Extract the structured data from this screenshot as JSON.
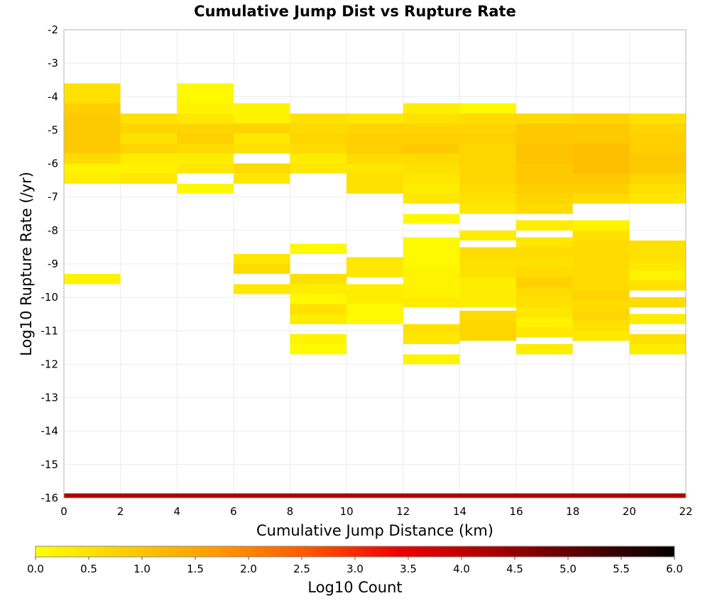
{
  "chart_data": {
    "type": "heatmap",
    "title": "Cumulative Jump Dist vs Rupture Rate",
    "xlabel": "Cumulative Jump Distance (km)",
    "ylabel": "Log10 Rupture Rate (/yr)",
    "xlim": [
      0,
      22
    ],
    "ylim": [
      -16,
      -2
    ],
    "x_ticks": [
      "0",
      "2",
      "4",
      "6",
      "8",
      "10",
      "12",
      "14",
      "16",
      "18",
      "20",
      "22"
    ],
    "y_ticks": [
      "-2",
      "-3",
      "-4",
      "-5",
      "-6",
      "-7",
      "-8",
      "-9",
      "-10",
      "-11",
      "-12",
      "-13",
      "-14",
      "-15",
      "-16"
    ],
    "grid": true,
    "bin_width_x": 2,
    "bin_height_y": 0.3,
    "colorbar": {
      "label": "Log10 Count",
      "range": [
        0,
        6
      ],
      "ticks": [
        "0.0",
        "0.5",
        "1.0",
        "1.5",
        "2.0",
        "2.5",
        "3.0",
        "3.5",
        "4.0",
        "4.5",
        "5.0",
        "5.5",
        "6.0"
      ],
      "colors": [
        "#ffff00",
        "#ffcc00",
        "#ff9900",
        "#ff5500",
        "#ee0000",
        "#aa0000",
        "#550000",
        "#000000"
      ]
    },
    "cells": [
      [
        0,
        -3.6,
        0.5
      ],
      [
        0,
        -3.9,
        0.5
      ],
      [
        0,
        -4.2,
        0.8
      ],
      [
        0,
        -4.5,
        0.9
      ],
      [
        0,
        -4.8,
        0.9
      ],
      [
        0,
        -5.1,
        0.9
      ],
      [
        0,
        -5.4,
        0.9
      ],
      [
        0,
        -5.7,
        0.6
      ],
      [
        0,
        -6.0,
        0.2
      ],
      [
        0,
        -6.3,
        0.3
      ],
      [
        0,
        -9.3,
        0.2
      ],
      [
        2,
        -4.5,
        0.5
      ],
      [
        2,
        -4.8,
        0.7
      ],
      [
        2,
        -5.1,
        0.5
      ],
      [
        2,
        -5.4,
        0.7
      ],
      [
        2,
        -5.7,
        0.3
      ],
      [
        2,
        -6.0,
        0.2
      ],
      [
        2,
        -6.3,
        0.4
      ],
      [
        4,
        -3.6,
        0.1
      ],
      [
        4,
        -3.9,
        0.1
      ],
      [
        4,
        -4.2,
        0.2
      ],
      [
        4,
        -4.5,
        0.4
      ],
      [
        4,
        -4.8,
        0.7
      ],
      [
        4,
        -5.1,
        0.8
      ],
      [
        4,
        -5.4,
        0.6
      ],
      [
        4,
        -5.7,
        0.3
      ],
      [
        4,
        -6.0,
        0.4
      ],
      [
        4,
        -6.6,
        0.1
      ],
      [
        6,
        -4.2,
        0.2
      ],
      [
        6,
        -4.5,
        0.2
      ],
      [
        6,
        -4.8,
        0.7
      ],
      [
        6,
        -5.1,
        0.4
      ],
      [
        6,
        -5.4,
        0.5
      ],
      [
        6,
        -6.0,
        0.6
      ],
      [
        6,
        -6.3,
        0.4
      ],
      [
        6,
        -8.7,
        0.4
      ],
      [
        6,
        -9.0,
        0.6
      ],
      [
        6,
        -9.6,
        0.4
      ],
      [
        8,
        -4.5,
        0.5
      ],
      [
        8,
        -4.8,
        0.6
      ],
      [
        8,
        -5.1,
        0.7
      ],
      [
        8,
        -5.4,
        0.6
      ],
      [
        8,
        -5.7,
        0.3
      ],
      [
        8,
        -6.0,
        0.4
      ],
      [
        8,
        -8.4,
        0.1
      ],
      [
        8,
        -9.3,
        0.5
      ],
      [
        8,
        -9.6,
        0.3
      ],
      [
        8,
        -9.9,
        0.1
      ],
      [
        8,
        -10.2,
        0.5
      ],
      [
        8,
        -10.5,
        0.3
      ],
      [
        8,
        -11.1,
        0.2
      ],
      [
        8,
        -11.4,
        0.1
      ],
      [
        10,
        -4.5,
        0.4
      ],
      [
        10,
        -4.8,
        0.7
      ],
      [
        10,
        -5.1,
        0.8
      ],
      [
        10,
        -5.4,
        0.8
      ],
      [
        10,
        -5.7,
        0.6
      ],
      [
        10,
        -6.0,
        0.4
      ],
      [
        10,
        -6.3,
        0.5
      ],
      [
        10,
        -6.6,
        0.5
      ],
      [
        10,
        -8.8,
        0.4
      ],
      [
        10,
        -9.1,
        0.4
      ],
      [
        10,
        -9.6,
        0.3
      ],
      [
        10,
        -9.9,
        0.3
      ],
      [
        10,
        -10.2,
        0.1
      ],
      [
        10,
        -10.5,
        0.1
      ],
      [
        12,
        -4.2,
        0.3
      ],
      [
        12,
        -4.5,
        0.5
      ],
      [
        12,
        -4.8,
        0.7
      ],
      [
        12,
        -5.1,
        0.8
      ],
      [
        12,
        -5.4,
        0.9
      ],
      [
        12,
        -5.7,
        0.6
      ],
      [
        12,
        -6.0,
        0.5
      ],
      [
        12,
        -6.3,
        0.4
      ],
      [
        12,
        -6.6,
        0.3
      ],
      [
        12,
        -6.9,
        0.4
      ],
      [
        12,
        -7.5,
        0.1
      ],
      [
        12,
        -8.2,
        0.1
      ],
      [
        12,
        -8.5,
        0.1
      ],
      [
        12,
        -8.8,
        0.1
      ],
      [
        12,
        -9.1,
        0.2
      ],
      [
        12,
        -9.4,
        0.2
      ],
      [
        12,
        -9.7,
        0.2
      ],
      [
        12,
        -10.0,
        0.3
      ],
      [
        12,
        -10.8,
        0.5
      ],
      [
        12,
        -11.1,
        0.4
      ],
      [
        12,
        -11.7,
        0.2
      ],
      [
        14,
        -4.2,
        0.1
      ],
      [
        14,
        -4.5,
        0.6
      ],
      [
        14,
        -4.8,
        0.7
      ],
      [
        14,
        -5.1,
        0.8
      ],
      [
        14,
        -5.4,
        0.7
      ],
      [
        14,
        -5.7,
        0.7
      ],
      [
        14,
        -6.0,
        0.7
      ],
      [
        14,
        -6.3,
        0.7
      ],
      [
        14,
        -6.6,
        0.6
      ],
      [
        14,
        -6.9,
        0.5
      ],
      [
        14,
        -7.2,
        0.4
      ],
      [
        14,
        -8.0,
        0.3
      ],
      [
        14,
        -8.5,
        0.6
      ],
      [
        14,
        -8.8,
        0.5
      ],
      [
        14,
        -9.1,
        0.5
      ],
      [
        14,
        -9.4,
        0.3
      ],
      [
        14,
        -9.7,
        0.3
      ],
      [
        14,
        -10.0,
        0.3
      ],
      [
        14,
        -10.4,
        0.6
      ],
      [
        14,
        -10.7,
        0.7
      ],
      [
        14,
        -11.0,
        0.7
      ],
      [
        16,
        -4.5,
        0.6
      ],
      [
        16,
        -4.8,
        0.9
      ],
      [
        16,
        -5.1,
        0.9
      ],
      [
        16,
        -5.4,
        1.0
      ],
      [
        16,
        -5.7,
        1.0
      ],
      [
        16,
        -6.0,
        0.9
      ],
      [
        16,
        -6.3,
        0.9
      ],
      [
        16,
        -6.6,
        0.8
      ],
      [
        16,
        -6.9,
        0.7
      ],
      [
        16,
        -7.2,
        0.6
      ],
      [
        16,
        -7.7,
        0.3
      ],
      [
        16,
        -8.2,
        0.4
      ],
      [
        16,
        -8.5,
        0.6
      ],
      [
        16,
        -8.8,
        0.5
      ],
      [
        16,
        -9.1,
        0.6
      ],
      [
        16,
        -9.4,
        0.8
      ],
      [
        16,
        -9.7,
        0.6
      ],
      [
        16,
        -10.0,
        0.5
      ],
      [
        16,
        -10.3,
        0.4
      ],
      [
        16,
        -10.6,
        0.2
      ],
      [
        16,
        -10.9,
        0.4
      ],
      [
        16,
        -11.4,
        0.3
      ],
      [
        18,
        -4.5,
        0.7
      ],
      [
        18,
        -4.8,
        0.9
      ],
      [
        18,
        -5.1,
        0.9
      ],
      [
        18,
        -5.4,
        1.1
      ],
      [
        18,
        -5.7,
        1.1
      ],
      [
        18,
        -6.0,
        1.1
      ],
      [
        18,
        -6.3,
        0.9
      ],
      [
        18,
        -6.6,
        0.8
      ],
      [
        18,
        -6.9,
        0.6
      ],
      [
        18,
        -7.7,
        0.2
      ],
      [
        18,
        -8.0,
        0.5
      ],
      [
        18,
        -8.3,
        0.6
      ],
      [
        18,
        -8.6,
        0.6
      ],
      [
        18,
        -8.9,
        0.6
      ],
      [
        18,
        -9.2,
        0.6
      ],
      [
        18,
        -9.5,
        0.6
      ],
      [
        18,
        -9.8,
        0.7
      ],
      [
        18,
        -10.1,
        0.6
      ],
      [
        18,
        -10.4,
        0.7
      ],
      [
        18,
        -10.7,
        0.5
      ],
      [
        18,
        -11.0,
        0.4
      ],
      [
        20,
        -4.5,
        0.5
      ],
      [
        20,
        -4.8,
        0.7
      ],
      [
        20,
        -5.1,
        0.8
      ],
      [
        20,
        -5.4,
        0.8
      ],
      [
        20,
        -5.7,
        0.9
      ],
      [
        20,
        -6.0,
        0.9
      ],
      [
        20,
        -6.3,
        0.7
      ],
      [
        20,
        -6.6,
        0.5
      ],
      [
        20,
        -6.9,
        0.4
      ],
      [
        20,
        -8.3,
        0.5
      ],
      [
        20,
        -8.6,
        0.5
      ],
      [
        20,
        -8.9,
        0.4
      ],
      [
        20,
        -9.2,
        0.2
      ],
      [
        20,
        -9.5,
        0.5
      ],
      [
        20,
        -10.0,
        0.6
      ],
      [
        20,
        -10.5,
        0.3
      ],
      [
        20,
        -11.1,
        0.5
      ],
      [
        20,
        -11.4,
        0.3
      ]
    ],
    "bottom_band": {
      "y_range": [
        -16,
        -15.86
      ],
      "x_range": [
        0,
        22
      ],
      "value": 4.2
    }
  }
}
